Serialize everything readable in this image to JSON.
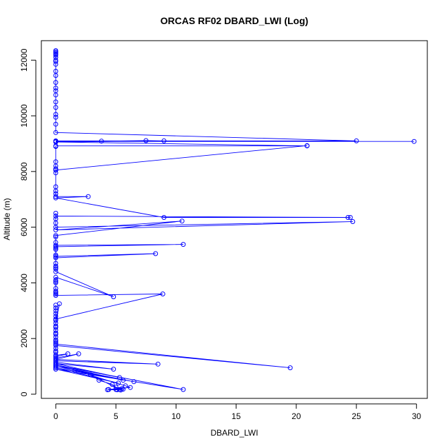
{
  "chart_data": {
    "type": "line",
    "title": "ORCAS RF02 DBARD_LWI (Log)",
    "xlabel": "DBARD_LWI",
    "ylabel": "Altitude (m)",
    "xlim": [
      -1.2,
      30.9
    ],
    "ylim": [
      -150,
      12700
    ],
    "xticks": [
      0,
      5,
      10,
      15,
      20,
      25,
      30
    ],
    "yticks": [
      0,
      2000,
      4000,
      6000,
      8000,
      10000,
      12000
    ],
    "grid": false,
    "legend": "none",
    "series_color": "#0000ff",
    "marker": "open-circle",
    "series": [
      {
        "points": [
          [
            0,
            12340
          ],
          [
            0,
            12300
          ],
          [
            0,
            12260
          ],
          [
            0,
            12220
          ],
          [
            0,
            12180
          ],
          [
            0,
            12100
          ],
          [
            0,
            12000
          ],
          [
            0,
            11950
          ],
          [
            0,
            11850
          ],
          [
            0,
            11600
          ],
          [
            0,
            11450
          ],
          [
            0,
            11200
          ],
          [
            0,
            11000
          ],
          [
            0,
            10900
          ],
          [
            0,
            10750
          ],
          [
            0,
            10500
          ],
          [
            0,
            10300
          ],
          [
            0,
            10050
          ],
          [
            0,
            9950
          ],
          [
            0,
            9700
          ],
          [
            0,
            9400
          ],
          [
            25.0,
            9100
          ],
          [
            0,
            9100
          ],
          [
            29.8,
            9080
          ],
          [
            0,
            9080
          ],
          [
            3.8,
            9090
          ],
          [
            7.5,
            9110
          ],
          [
            9.0,
            9100
          ],
          [
            0,
            9060
          ],
          [
            20.9,
            8920
          ],
          [
            0,
            8920
          ],
          [
            0,
            8900
          ],
          [
            0,
            8350
          ],
          [
            0,
            8200
          ],
          [
            0,
            8100
          ],
          [
            0,
            8050
          ],
          [
            20.9,
            8930
          ],
          [
            0,
            8050
          ],
          [
            0,
            7950
          ],
          [
            0,
            7450
          ],
          [
            0,
            7300
          ],
          [
            0,
            7200
          ],
          [
            0,
            7100
          ],
          [
            2.7,
            7100
          ],
          [
            0,
            7050
          ],
          [
            9.0,
            6350
          ],
          [
            24.3,
            6350
          ],
          [
            24.5,
            6350
          ],
          [
            0,
            6400
          ],
          [
            0,
            6500
          ],
          [
            0,
            6300
          ],
          [
            0,
            6150
          ],
          [
            0,
            6000
          ],
          [
            24.7,
            6200
          ],
          [
            0,
            5900
          ],
          [
            10.5,
            6220
          ],
          [
            0,
            5700
          ],
          [
            0,
            5650
          ],
          [
            0,
            5450
          ],
          [
            0,
            5350
          ],
          [
            10.6,
            5380
          ],
          [
            0,
            5300
          ],
          [
            0,
            5250
          ],
          [
            0,
            5200
          ],
          [
            0,
            5000
          ],
          [
            0,
            4950
          ],
          [
            8.3,
            5050
          ],
          [
            0,
            4900
          ],
          [
            0,
            4700
          ],
          [
            0,
            4600
          ],
          [
            0,
            4550
          ],
          [
            0,
            4500
          ],
          [
            0,
            4400
          ],
          [
            4.8,
            3500
          ],
          [
            0,
            4200
          ],
          [
            0,
            4100
          ],
          [
            0,
            4050
          ],
          [
            0,
            4000
          ],
          [
            0,
            3800
          ],
          [
            0,
            3700
          ],
          [
            0,
            3650
          ],
          [
            0,
            3600
          ],
          [
            0,
            3550
          ],
          [
            8.9,
            3600
          ],
          [
            0,
            2700
          ],
          [
            0,
            3200
          ],
          [
            0,
            3100
          ],
          [
            0,
            3000
          ],
          [
            0,
            2900
          ],
          [
            0,
            2800
          ],
          [
            0,
            2650
          ],
          [
            0.3,
            3250
          ],
          [
            0,
            2550
          ],
          [
            0,
            2450
          ],
          [
            0,
            2400
          ],
          [
            0,
            2300
          ],
          [
            0,
            2200
          ],
          [
            0,
            2150
          ],
          [
            0,
            2050
          ],
          [
            0,
            1950
          ],
          [
            0,
            1900
          ],
          [
            0,
            1850
          ],
          [
            0,
            1800
          ],
          [
            19.5,
            950
          ],
          [
            0,
            1750
          ],
          [
            0,
            1650
          ],
          [
            0,
            1550
          ],
          [
            0,
            1500
          ],
          [
            0,
            1400
          ],
          [
            1.0,
            1450
          ],
          [
            0,
            1350
          ],
          [
            0,
            1300
          ],
          [
            1.9,
            1450
          ],
          [
            0,
            1250
          ],
          [
            8.5,
            1080
          ],
          [
            0,
            1200
          ],
          [
            0,
            1150
          ],
          [
            4.8,
            900
          ],
          [
            0,
            1100
          ],
          [
            5.3,
            600
          ],
          [
            0,
            1050
          ],
          [
            5.6,
            500
          ],
          [
            0,
            1000
          ],
          [
            6.5,
            450
          ],
          [
            0,
            950
          ],
          [
            5.2,
            400
          ],
          [
            0,
            900
          ],
          [
            10.6,
            170
          ],
          [
            0,
            1050
          ],
          [
            1.6,
            850
          ],
          [
            5.8,
            300
          ],
          [
            6.2,
            240
          ],
          [
            4.4,
            170
          ],
          [
            5.0,
            170
          ],
          [
            5.3,
            170
          ],
          [
            5.5,
            200
          ],
          [
            5.0,
            250
          ],
          [
            4.7,
            350
          ],
          [
            3.6,
            500
          ],
          [
            2.9,
            700
          ],
          [
            5.4,
            150
          ],
          [
            5.1,
            160
          ],
          [
            4.3,
            160
          ],
          [
            5.6,
            180
          ]
        ]
      }
    ]
  }
}
